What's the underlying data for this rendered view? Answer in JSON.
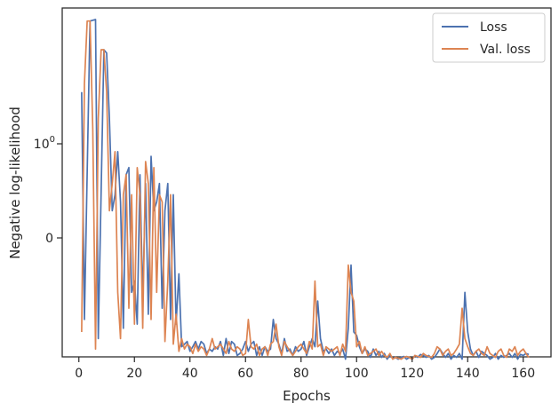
{
  "chart_data": {
    "type": "line",
    "xlabel": "Epochs",
    "ylabel": "Negative log-likelihood",
    "y_scale": "symlog",
    "grid": false,
    "legend_placement": "top-right",
    "xlim": [
      -6,
      170
    ],
    "x_ticks": [
      0,
      20,
      40,
      60,
      80,
      100,
      120,
      140,
      160
    ],
    "y_ticks": [
      {
        "value": 0,
        "label": "0"
      },
      {
        "value": 1,
        "label": "10",
        "exponent": "0"
      }
    ],
    "series": [
      {
        "name": "Loss",
        "color": "#4c72b0",
        "points": [
          [
            1,
            4.0
          ],
          [
            2,
            -0.7
          ],
          [
            4,
            25
          ],
          [
            6,
            26
          ],
          [
            7,
            -1.2
          ],
          [
            9,
            12
          ],
          [
            10,
            11
          ],
          [
            11,
            2
          ],
          [
            12,
            0.1
          ],
          [
            13,
            0.2
          ],
          [
            14,
            0.8
          ],
          [
            15,
            0.15
          ],
          [
            16,
            -0.9
          ],
          [
            17,
            0.4
          ],
          [
            18,
            0.5
          ],
          [
            19,
            -0.3
          ],
          [
            20,
            -0.2
          ],
          [
            21,
            -0.8
          ],
          [
            22,
            0.4
          ],
          [
            23,
            -0.4
          ],
          [
            24,
            0.3
          ],
          [
            25,
            -0.6
          ],
          [
            26,
            0.7
          ],
          [
            27,
            0.1
          ],
          [
            28,
            0.15
          ],
          [
            29,
            0.3
          ],
          [
            30,
            -0.5
          ],
          [
            31,
            0.1
          ],
          [
            32,
            0.3
          ],
          [
            33,
            -0.7
          ],
          [
            34,
            0.2
          ],
          [
            35,
            -0.8
          ],
          [
            36,
            -0.15
          ],
          [
            37,
            -1.5
          ],
          [
            38,
            -1.4
          ],
          [
            39,
            -1.3
          ],
          [
            40,
            -1.7
          ],
          [
            41,
            -1.5
          ],
          [
            42,
            -1.3
          ],
          [
            43,
            -1.6
          ],
          [
            44,
            -1.3
          ],
          [
            45,
            -1.4
          ],
          [
            46,
            -1.8
          ],
          [
            47,
            -1.6
          ],
          [
            48,
            -1.7
          ],
          [
            49,
            -1.5
          ],
          [
            50,
            -1.6
          ],
          [
            51,
            -1.3
          ],
          [
            52,
            -1.9
          ],
          [
            53,
            -1.2
          ],
          [
            54,
            -1.8
          ],
          [
            55,
            -1.3
          ],
          [
            56,
            -1.4
          ],
          [
            57,
            -1.9
          ],
          [
            58,
            -1.8
          ],
          [
            59,
            -1.6
          ],
          [
            60,
            -1.3
          ],
          [
            61,
            -1.7
          ],
          [
            62,
            -1.4
          ],
          [
            63,
            -1.3
          ],
          [
            64,
            -1.9
          ],
          [
            65,
            -1.5
          ],
          [
            66,
            -1.9
          ],
          [
            67,
            -1.5
          ],
          [
            68,
            -1.7
          ],
          [
            69,
            -1.6
          ],
          [
            70,
            -0.7
          ],
          [
            71,
            -1.2
          ],
          [
            72,
            -1.4
          ],
          [
            73,
            -1.8
          ],
          [
            74,
            -1.2
          ],
          [
            75,
            -1.7
          ],
          [
            76,
            -1.6
          ],
          [
            77,
            -1.9
          ],
          [
            78,
            -1.5
          ],
          [
            79,
            -1.7
          ],
          [
            80,
            -1.6
          ],
          [
            81,
            -1.3
          ],
          [
            82,
            -1.9
          ],
          [
            83,
            -1.5
          ],
          [
            84,
            -1.2
          ],
          [
            85,
            -1.5
          ],
          [
            86,
            -0.4
          ],
          [
            87,
            -1.2
          ],
          [
            88,
            -1.7
          ],
          [
            89,
            -1.6
          ],
          [
            90,
            -1.8
          ],
          [
            91,
            -1.6
          ],
          [
            92,
            -1.9
          ],
          [
            93,
            -1.7
          ],
          [
            94,
            -1.8
          ],
          [
            95,
            -1.6
          ],
          [
            96,
            -2.1
          ],
          [
            97,
            -0.9
          ],
          [
            98,
            -0.1
          ],
          [
            99,
            -1.0
          ],
          [
            100,
            -1.1
          ],
          [
            101,
            -1.5
          ],
          [
            102,
            -1.8
          ],
          [
            103,
            -1.6
          ],
          [
            104,
            -1.7
          ],
          [
            105,
            -2.0
          ],
          [
            106,
            -1.6
          ],
          [
            107,
            -1.9
          ],
          [
            108,
            -1.7
          ],
          [
            109,
            -2.0
          ],
          [
            110,
            -1.8
          ],
          [
            111,
            -2.1
          ],
          [
            112,
            -1.9
          ],
          [
            113,
            -2.05
          ],
          [
            114,
            -2.0
          ],
          [
            115,
            -2.1
          ],
          [
            116,
            -2.0
          ],
          [
            117,
            -1.95
          ],
          [
            118,
            -2.1
          ],
          [
            119,
            -2.0
          ],
          [
            120,
            -2.1
          ],
          [
            121,
            -1.9
          ],
          [
            122,
            -2.0
          ],
          [
            123,
            -1.85
          ],
          [
            124,
            -1.9
          ],
          [
            125,
            -2.0
          ],
          [
            126,
            -1.9
          ],
          [
            127,
            -2.1
          ],
          [
            128,
            -2.0
          ],
          [
            129,
            -1.8
          ],
          [
            130,
            -1.6
          ],
          [
            131,
            -1.8
          ],
          [
            132,
            -2.0
          ],
          [
            133,
            -1.8
          ],
          [
            134,
            -2.1
          ],
          [
            135,
            -1.9
          ],
          [
            136,
            -2.0
          ],
          [
            137,
            -1.8
          ],
          [
            138,
            -2.1
          ],
          [
            139,
            -0.3
          ],
          [
            140,
            -1.0
          ],
          [
            141,
            -1.6
          ],
          [
            142,
            -1.9
          ],
          [
            143,
            -1.7
          ],
          [
            144,
            -2.0
          ],
          [
            145,
            -1.7
          ],
          [
            146,
            -1.8
          ],
          [
            147,
            -1.9
          ],
          [
            148,
            -2.1
          ],
          [
            149,
            -2.0
          ],
          [
            150,
            -1.8
          ],
          [
            151,
            -2.1
          ],
          [
            152,
            -1.9
          ],
          [
            153,
            -2.0
          ],
          [
            154,
            -1.9
          ],
          [
            155,
            -1.8
          ],
          [
            156,
            -2.0
          ],
          [
            157,
            -1.8
          ],
          [
            158,
            -2.1
          ],
          [
            159,
            -1.85
          ],
          [
            160,
            -1.9
          ],
          [
            161,
            -1.8
          ],
          [
            162,
            -1.85
          ]
        ]
      },
      {
        "name": "Val. loss",
        "color": "#dd8452",
        "points": [
          [
            1,
            -1.0
          ],
          [
            2,
            5.0
          ],
          [
            3,
            25
          ],
          [
            4,
            25
          ],
          [
            5,
            1.5
          ],
          [
            6,
            -1.6
          ],
          [
            7,
            2
          ],
          [
            8,
            12
          ],
          [
            9,
            12
          ],
          [
            10,
            4
          ],
          [
            11,
            0.1
          ],
          [
            12,
            0.3
          ],
          [
            13,
            0.8
          ],
          [
            14,
            -0.3
          ],
          [
            15,
            -1.2
          ],
          [
            16,
            0.2
          ],
          [
            17,
            0.4
          ],
          [
            18,
            -0.5
          ],
          [
            19,
            0.2
          ],
          [
            20,
            -0.8
          ],
          [
            21,
            0.5
          ],
          [
            22,
            0.2
          ],
          [
            23,
            -0.9
          ],
          [
            24,
            0.6
          ],
          [
            25,
            0.3
          ],
          [
            26,
            -0.7
          ],
          [
            27,
            0.5
          ],
          [
            28,
            -0.3
          ],
          [
            29,
            0.2
          ],
          [
            30,
            0.15
          ],
          [
            31,
            -1.3
          ],
          [
            32,
            -0.2
          ],
          [
            33,
            0.2
          ],
          [
            34,
            -1.4
          ],
          [
            35,
            -0.6
          ],
          [
            36,
            -1.7
          ],
          [
            37,
            -1.2
          ],
          [
            38,
            -1.6
          ],
          [
            39,
            -1.4
          ],
          [
            40,
            -1.5
          ],
          [
            41,
            -1.8
          ],
          [
            42,
            -1.4
          ],
          [
            43,
            -1.7
          ],
          [
            44,
            -1.5
          ],
          [
            45,
            -1.6
          ],
          [
            46,
            -1.9
          ],
          [
            47,
            -1.6
          ],
          [
            48,
            -1.2
          ],
          [
            49,
            -1.6
          ],
          [
            50,
            -1.5
          ],
          [
            51,
            -1.4
          ],
          [
            52,
            -1.6
          ],
          [
            53,
            -1.8
          ],
          [
            54,
            -1.3
          ],
          [
            55,
            -1.6
          ],
          [
            56,
            -1.7
          ],
          [
            57,
            -1.5
          ],
          [
            58,
            -1.6
          ],
          [
            59,
            -1.9
          ],
          [
            60,
            -1.8
          ],
          [
            61,
            -0.7
          ],
          [
            62,
            -1.5
          ],
          [
            63,
            -1.6
          ],
          [
            64,
            -1.4
          ],
          [
            65,
            -1.9
          ],
          [
            66,
            -1.6
          ],
          [
            67,
            -1.5
          ],
          [
            68,
            -1.9
          ],
          [
            69,
            -1.4
          ],
          [
            70,
            -1.3
          ],
          [
            71,
            -0.8
          ],
          [
            72,
            -1.5
          ],
          [
            73,
            -1.9
          ],
          [
            74,
            -1.3
          ],
          [
            75,
            -1.5
          ],
          [
            76,
            -1.7
          ],
          [
            77,
            -1.9
          ],
          [
            78,
            -1.7
          ],
          [
            79,
            -1.5
          ],
          [
            80,
            -1.4
          ],
          [
            81,
            -1.6
          ],
          [
            82,
            -1.8
          ],
          [
            83,
            -1.3
          ],
          [
            84,
            -1.6
          ],
          [
            85,
            -0.2
          ],
          [
            86,
            -1.5
          ],
          [
            87,
            -1.4
          ],
          [
            88,
            -1.9
          ],
          [
            89,
            -1.5
          ],
          [
            90,
            -1.6
          ],
          [
            91,
            -1.7
          ],
          [
            92,
            -1.6
          ],
          [
            93,
            -1.5
          ],
          [
            94,
            -1.9
          ],
          [
            95,
            -1.4
          ],
          [
            96,
            -1.7
          ],
          [
            97,
            -0.1
          ],
          [
            98,
            -0.3
          ],
          [
            99,
            -0.4
          ],
          [
            100,
            -1.5
          ],
          [
            101,
            -1.3
          ],
          [
            102,
            -1.8
          ],
          [
            103,
            -1.5
          ],
          [
            104,
            -1.9
          ],
          [
            105,
            -1.8
          ],
          [
            106,
            -1.7
          ],
          [
            107,
            -1.6
          ],
          [
            108,
            -1.9
          ],
          [
            109,
            -1.7
          ],
          [
            110,
            -1.9
          ],
          [
            111,
            -2.0
          ],
          [
            112,
            -1.8
          ],
          [
            113,
            -2.1
          ],
          [
            114,
            -2.0
          ],
          [
            115,
            -2.05
          ],
          [
            116,
            -2.1
          ],
          [
            117,
            -2.0
          ],
          [
            118,
            -1.95
          ],
          [
            119,
            -2.0
          ],
          [
            120,
            -2.1
          ],
          [
            121,
            -1.9
          ],
          [
            122,
            -1.95
          ],
          [
            123,
            -2.0
          ],
          [
            124,
            -1.8
          ],
          [
            125,
            -1.9
          ],
          [
            126,
            -1.95
          ],
          [
            127,
            -2.0
          ],
          [
            128,
            -1.8
          ],
          [
            129,
            -1.5
          ],
          [
            130,
            -1.6
          ],
          [
            131,
            -1.9
          ],
          [
            132,
            -1.7
          ],
          [
            133,
            -1.6
          ],
          [
            134,
            -1.9
          ],
          [
            135,
            -1.8
          ],
          [
            136,
            -1.6
          ],
          [
            137,
            -1.4
          ],
          [
            138,
            -0.5
          ],
          [
            139,
            -1.2
          ],
          [
            140,
            -1.5
          ],
          [
            141,
            -1.8
          ],
          [
            142,
            -1.9
          ],
          [
            143,
            -1.7
          ],
          [
            144,
            -1.6
          ],
          [
            145,
            -1.8
          ],
          [
            146,
            -1.9
          ],
          [
            147,
            -1.5
          ],
          [
            148,
            -1.8
          ],
          [
            149,
            -1.9
          ],
          [
            150,
            -2.0
          ],
          [
            151,
            -1.7
          ],
          [
            152,
            -1.6
          ],
          [
            153,
            -1.9
          ],
          [
            154,
            -2.0
          ],
          [
            155,
            -1.6
          ],
          [
            156,
            -1.7
          ],
          [
            157,
            -1.5
          ],
          [
            158,
            -1.9
          ],
          [
            159,
            -1.7
          ],
          [
            160,
            -1.6
          ],
          [
            161,
            -1.8
          ],
          [
            162,
            -2.0
          ]
        ]
      }
    ]
  }
}
